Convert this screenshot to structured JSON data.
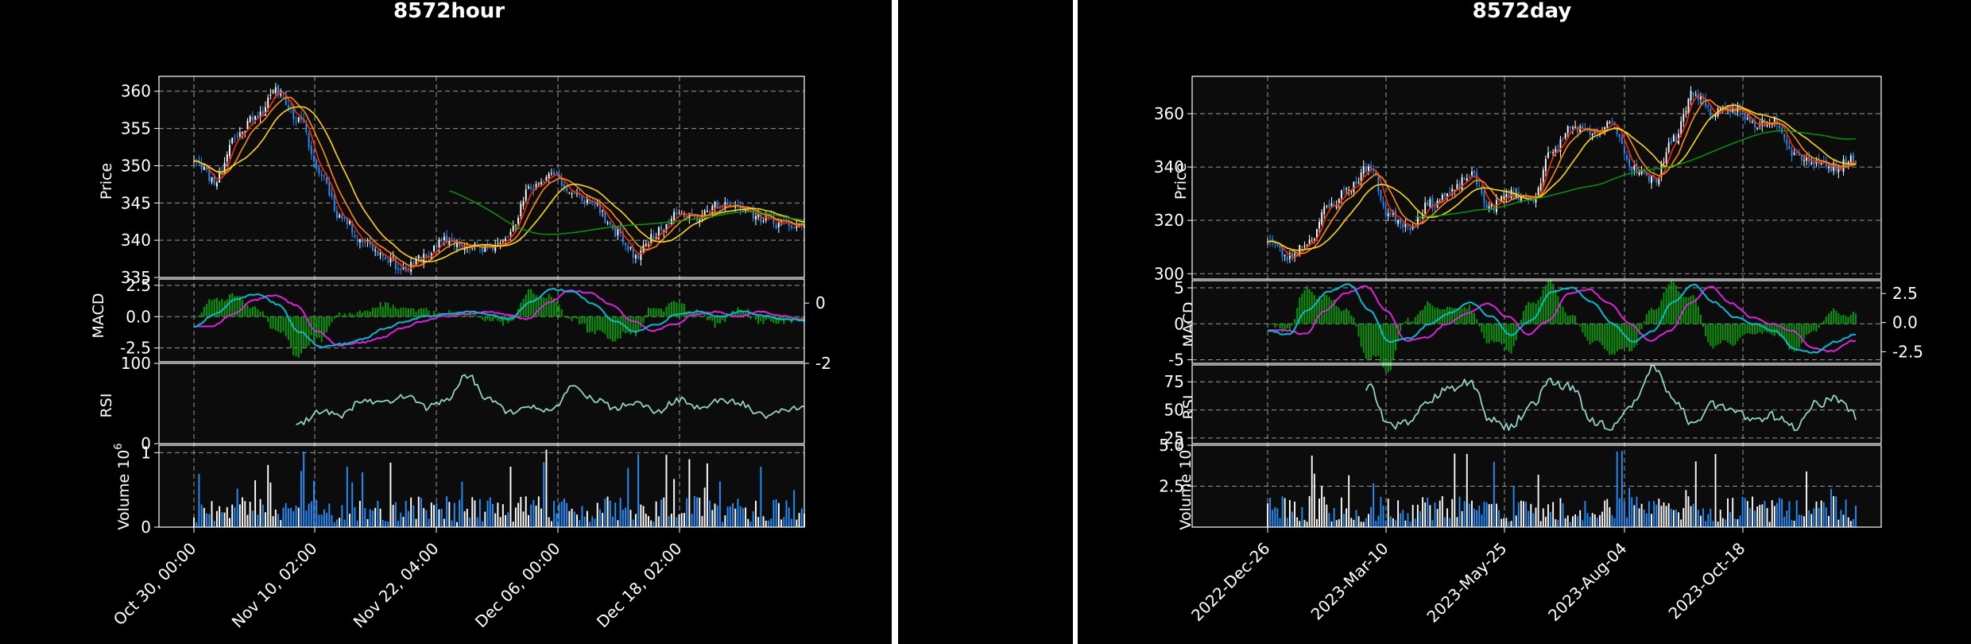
{
  "chart_data": [
    {
      "type": "candlestick",
      "title": "8572hour",
      "colors": {
        "up": "#ffffff",
        "down": "#1e90ff",
        "volume_up": "#ffffff",
        "volume_down": "#1e90ff",
        "ma_short": "#ff2a00",
        "ma_mid": "#ff8c00",
        "ma_long": "#ffd700",
        "ma_very_long": "#00a000",
        "macd": "#00bcd4",
        "signal": "#e020e0",
        "hist": "#00a000",
        "rsi": "#8fd1c4",
        "axes_bg": "#0c0c0c",
        "grid": "#b0b0b0"
      },
      "x_ticks": [
        "Oct 30, 00:00",
        "Nov 10, 02:00",
        "Nov 22, 04:00",
        "Dec 06, 00:00",
        "Dec 18, 02:00"
      ],
      "price": {
        "ylabel": "Price",
        "ylim": [
          335,
          362
        ],
        "yticks": [
          "335",
          "340",
          "345",
          "350",
          "355",
          "360"
        ],
        "anchors": [
          351,
          348,
          354,
          357,
          360,
          356,
          349,
          343,
          340,
          338,
          336,
          338,
          340,
          339,
          339,
          341,
          347,
          349,
          346,
          345,
          341,
          338,
          341,
          344,
          343,
          345,
          344,
          343,
          342,
          342
        ]
      },
      "macd": {
        "ylabel": "MACD",
        "ylim": [
          -3.6,
          3.0
        ],
        "yticks": [
          "-2.5",
          "0.0",
          "2.5"
        ],
        "right_yticks": [
          "-2",
          "0"
        ],
        "anchors": [
          -0.8,
          0.2,
          1.4,
          1.8,
          1.0,
          -1.2,
          -2.4,
          -2.2,
          -1.8,
          -1.0,
          -0.4,
          0.0,
          0.2,
          0.4,
          0.2,
          -0.2,
          1.2,
          2.2,
          2.0,
          1.0,
          -0.4,
          -1.2,
          -0.6,
          0.2,
          0.4,
          0.0,
          0.4,
          0.1,
          -0.2,
          -0.3
        ]
      },
      "rsi": {
        "ylabel": "RSI",
        "ylim": [
          0,
          100
        ],
        "yticks": [
          "0",
          "100"
        ],
        "anchors": [
          55,
          60,
          52,
          45,
          10,
          25,
          40,
          35,
          55,
          50,
          60,
          45,
          55,
          85,
          55,
          40,
          45,
          40,
          70,
          55,
          45,
          50,
          40,
          55,
          45,
          55,
          50,
          35,
          40,
          45
        ]
      },
      "volume": {
        "ylabel": "Volume  10",
        "exponent": "6",
        "ylim": [
          0,
          1.1
        ],
        "yticks": [
          "0",
          "1"
        ]
      }
    },
    {
      "type": "candlestick",
      "title": "8572day",
      "colors": {
        "up": "#ffffff",
        "down": "#1e90ff",
        "volume_up": "#ffffff",
        "volume_down": "#1e90ff",
        "ma_short": "#ff2a00",
        "ma_mid": "#ff8c00",
        "ma_long": "#ffd700",
        "ma_very_long": "#00a000",
        "macd": "#00bcd4",
        "signal": "#e020e0",
        "hist": "#00a000",
        "rsi": "#8fd1c4",
        "axes_bg": "#0c0c0c",
        "grid": "#b0b0b0"
      },
      "x_ticks": [
        "2022-Dec-26",
        "2023-Mar-10",
        "2023-May-25",
        "2023-Aug-04",
        "2023-Oct-18"
      ],
      "price": {
        "ylabel": "Price",
        "ylim": [
          298,
          374
        ],
        "yticks": [
          "300",
          "320",
          "340",
          "360"
        ],
        "anchors": [
          313,
          306,
          312,
          325,
          332,
          340,
          322,
          318,
          326,
          330,
          337,
          325,
          330,
          328,
          345,
          355,
          352,
          356,
          340,
          335,
          350,
          368,
          360,
          362,
          356,
          358,
          345,
          342,
          340,
          343
        ]
      },
      "macd": {
        "ylabel": "MACD",
        "ylim": [
          -5.5,
          6.0
        ],
        "yticks": [
          "-5",
          "0",
          "5"
        ],
        "right_yticks": [
          "-2.5",
          "0.0",
          "2.5"
        ],
        "anchors": [
          -1.0,
          -1.5,
          2.0,
          4.5,
          5.5,
          2.0,
          -2.5,
          -2.0,
          0.0,
          1.5,
          3.0,
          1.0,
          -1.5,
          0.5,
          4.5,
          5.0,
          3.0,
          0.0,
          -2.5,
          -1.0,
          3.0,
          5.5,
          3.0,
          1.0,
          0.0,
          -1.0,
          -3.5,
          -4.0,
          -2.5,
          -1.5
        ]
      },
      "rsi": {
        "ylabel": "RSI",
        "ylim": [
          20,
          90
        ],
        "yticks": [
          "25",
          "50",
          "75"
        ],
        "anchors": [
          50,
          40,
          75,
          72,
          68,
          70,
          35,
          40,
          60,
          70,
          75,
          40,
          35,
          55,
          75,
          70,
          40,
          35,
          55,
          88,
          60,
          35,
          55,
          50,
          40,
          45,
          35,
          55,
          60,
          45
        ]
      },
      "volume": {
        "ylabel": "Volume  10",
        "exponent": "6",
        "ylim": [
          0,
          5.0
        ],
        "yticks": [
          "2.5",
          "5.0"
        ]
      }
    }
  ]
}
